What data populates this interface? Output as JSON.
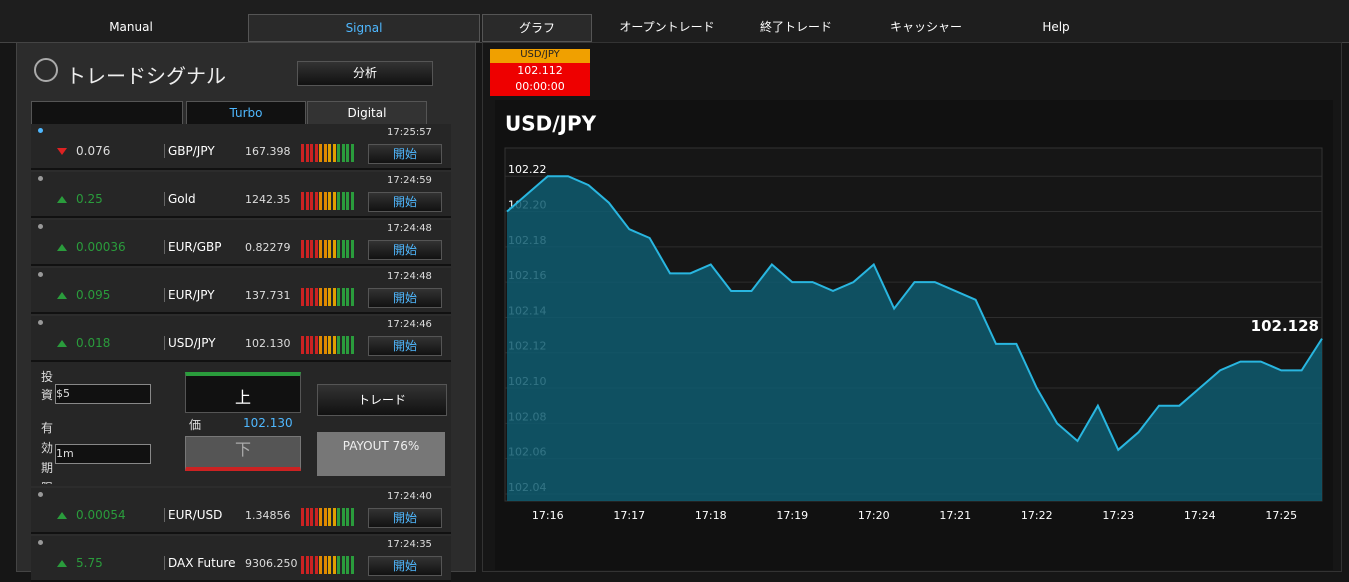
{
  "nav": [
    "Manual",
    "Signal",
    "グラフ",
    "オープントレード",
    "終了トレード",
    "キャッシャー",
    "Help"
  ],
  "panel": {
    "title": "トレードシグナル",
    "analysis": "分析",
    "tabs": [
      "Turbo",
      "Digital"
    ],
    "start_label": "開始",
    "signals": [
      {
        "time": "17:25:57",
        "direction": "down",
        "change": "0.076",
        "pair": "GBP/JPY",
        "price": "167.398"
      },
      {
        "time": "17:24:59",
        "direction": "up",
        "change": "0.25",
        "pair": "Gold",
        "price": "1242.35"
      },
      {
        "time": "17:24:48",
        "direction": "up",
        "change": "0.00036",
        "pair": "EUR/GBP",
        "price": "0.82279"
      },
      {
        "time": "17:24:48",
        "direction": "up",
        "change": "0.095",
        "pair": "EUR/JPY",
        "price": "137.731"
      },
      {
        "time": "17:24:46",
        "direction": "up",
        "change": "0.018",
        "pair": "USD/JPY",
        "price": "102.130"
      },
      {
        "time": "17:24:40",
        "direction": "up",
        "change": "0.00054",
        "pair": "EUR/USD",
        "price": "1.34856"
      },
      {
        "time": "17:24:35",
        "direction": "up",
        "change": "5.75",
        "pair": "DAX Future",
        "price": "9306.250"
      }
    ],
    "trade": {
      "invest_label": "投資",
      "invest": "$5",
      "expiry_label": "有効期限",
      "expiry": "1m",
      "up": "上",
      "price_label": "価",
      "price": "102.130",
      "down": "下",
      "trade": "トレード",
      "payout": "PAYOUT 76%"
    }
  },
  "ticker": {
    "pair": "USD/JPY",
    "price": "102.112",
    "timer": "00:00:00"
  },
  "chart_data": {
    "type": "area",
    "title": "USD/JPY",
    "color": "#29b6e0",
    "categories": [
      null,
      null,
      "17:16",
      null,
      null,
      null,
      "17:17",
      null,
      null,
      null,
      "17:18",
      null,
      null,
      null,
      "17:19",
      null,
      null,
      null,
      "17:20",
      null,
      null,
      null,
      "17:21",
      null,
      null,
      null,
      "17:22",
      null,
      null,
      null,
      "17:23",
      null,
      null,
      null,
      "17:24",
      null,
      null,
      null,
      "17:25",
      null,
      null
    ],
    "values": [
      102.2,
      102.21,
      102.22,
      102.22,
      102.215,
      102.205,
      102.19,
      102.185,
      102.165,
      102.165,
      102.17,
      102.155,
      102.155,
      102.17,
      102.16,
      102.16,
      102.155,
      102.16,
      102.17,
      102.145,
      102.16,
      102.16,
      102.155,
      102.15,
      102.125,
      102.125,
      102.1,
      102.08,
      102.07,
      102.09,
      102.065,
      102.075,
      102.09,
      102.09,
      102.1,
      102.11,
      102.115,
      102.115,
      102.11,
      102.11,
      102.128
    ],
    "ylim": [
      102.036,
      102.236
    ],
    "yticks": [
      102.04,
      102.06,
      102.08,
      {
        "value": 102.1,
        "label": "102.10"
      },
      102.12,
      102.14,
      102.16,
      102.18,
      {
        "value": 102.2,
        "label": "102.20"
      },
      102.22
    ],
    "grid": true
  }
}
